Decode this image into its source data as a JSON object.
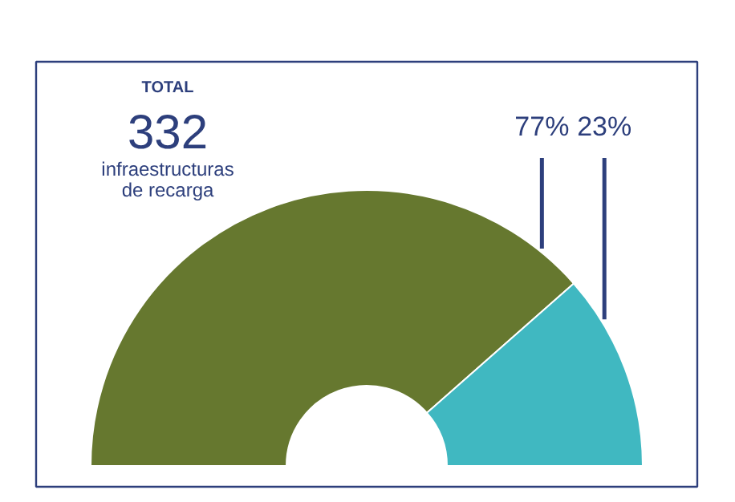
{
  "chart_data": {
    "type": "donut",
    "categories": [
      null,
      null
    ],
    "values": [
      77,
      23
    ],
    "colors": [
      "#66782f",
      "#40b8c1"
    ],
    "value_labels": [
      "77%",
      "23%"
    ],
    "annotations": [
      "TOTAL",
      "332",
      "infraestructuras de recarga"
    ]
  }
}
